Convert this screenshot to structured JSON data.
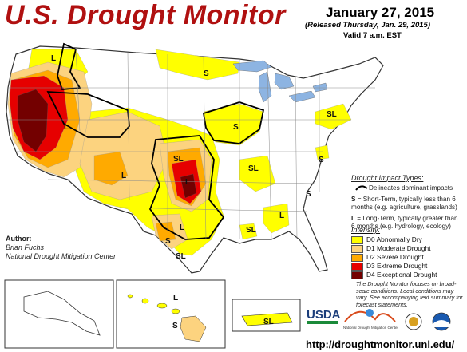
{
  "header": {
    "title": "U.S. Drought Monitor",
    "date": "January 27, 2015",
    "released": "(Released Thursday, Jan. 29, 2015)",
    "valid": "Valid 7 a.m. EST"
  },
  "author": {
    "label": "Author:",
    "name": "Brian Fuchs",
    "org": "National Drought Mitigation Center"
  },
  "impact_legend": {
    "heading": "Drought Impact Types:",
    "boundary": "Delineates dominant impacts",
    "s_key": "S",
    "s_text": "= Short-Term, typically less than 6 months (e.g. agriculture, grasslands)",
    "l_key": "L",
    "l_text": "= Long-Term, typically greater than 6 months (e.g. hydrology, ecology)"
  },
  "intensity_legend": {
    "heading": "Intensity:",
    "items": [
      {
        "label": "D0 Abnormally Dry",
        "color": "#ffff00"
      },
      {
        "label": "D1 Moderate Drought",
        "color": "#fcd37f"
      },
      {
        "label": "D2 Severe Drought",
        "color": "#ffaa00"
      },
      {
        "label": "D3 Extreme Drought",
        "color": "#e60000"
      },
      {
        "label": "D4 Exceptional Drought",
        "color": "#730000"
      }
    ]
  },
  "note": "The Drought Monitor focuses on broad-scale conditions. Local conditions may vary. See accompanying text summary for forecast statements.",
  "url": "http://droughtmonitor.unl.edu/",
  "map_labels": {
    "wa": "L",
    "ca_north": "L",
    "nv": "L",
    "nd": "S",
    "nm": "L",
    "ks": "SL",
    "ia": "S",
    "nc": "SL",
    "ok": "L",
    "tn": "SL",
    "tx_west": "L",
    "tx_east": "S",
    "tx_south": "SL",
    "ga": "S",
    "al": "SL",
    "sc": "S",
    "hi_north": "L",
    "hi_south": "S",
    "pr": "SL"
  },
  "logos": {
    "usda": "USDA",
    "ndmc": "National Drought Mitigation Center"
  },
  "colors": {
    "d0": "#ffff00",
    "d1": "#fcd37f",
    "d2": "#ffaa00",
    "d3": "#e60000",
    "d4": "#730000",
    "water": "#8db4e2",
    "title": "#b01010"
  }
}
